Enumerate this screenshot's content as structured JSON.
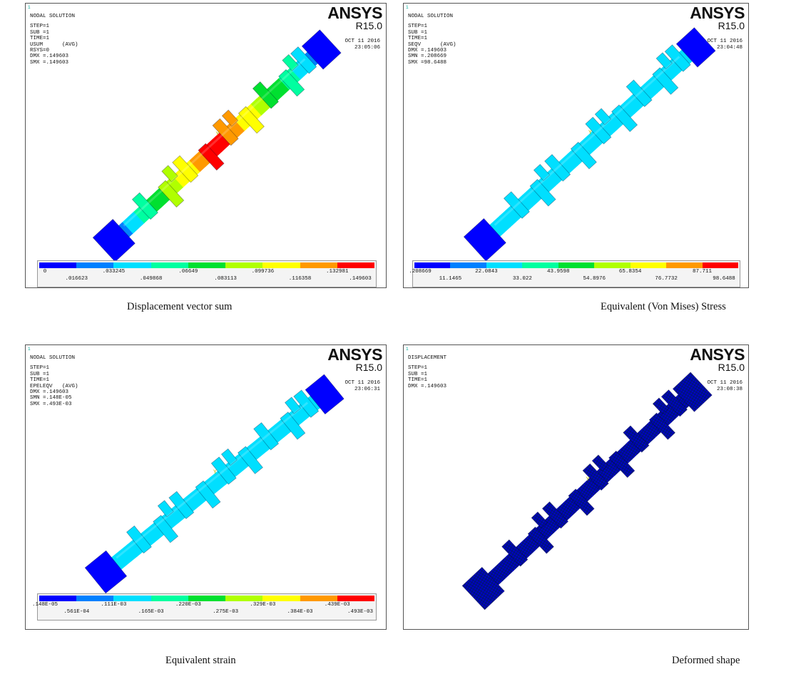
{
  "brand": {
    "logo": "ANSYS",
    "version": "R15.0",
    "window_number": "1"
  },
  "colors": {
    "contour": [
      "#0000ff",
      "#0080ff",
      "#00dfff",
      "#00ffa0",
      "#00e030",
      "#b0ff00",
      "#ffff00",
      "#ff9900",
      "#ff0000"
    ],
    "mesh": "#0000c8",
    "mesh_lines": "#001a66"
  },
  "panels": [
    {
      "caption": "Displacement vector sum",
      "info": [
        "NODAL SOLUTION",
        "STEP=1",
        "SUB =1",
        "TIME=1",
        "USUM      (AVG)",
        "RSYS=0",
        "DMX =.149603",
        "SMX =.149603"
      ],
      "date": "OCT 11 2016",
      "time": "23:05:06",
      "legend": {
        "upper": [
          "0",
          ".033245",
          ".06649",
          ".099736",
          ".132981"
        ],
        "lower": [
          ".016623",
          ".049868",
          ".083113",
          ".116358",
          ".149603"
        ]
      }
    },
    {
      "caption": "Equivalent (Von Mises) Stress",
      "info": [
        "NODAL SOLUTION",
        "STEP=1",
        "SUB =1",
        "TIME=1",
        "SEQV      (AVG)",
        "DMX =.149603",
        "SMN =.208669",
        "SMX =98.6488"
      ],
      "date": "OCT 11 2016",
      "time": "23:04:48",
      "legend": {
        "upper": [
          ".208669",
          "22.0843",
          "43.9598",
          "65.8354",
          "87.711"
        ],
        "lower": [
          "11.1465",
          "33.022",
          "54.8976",
          "76.7732",
          "98.6488"
        ]
      }
    },
    {
      "caption": "Equivalent strain",
      "info": [
        "NODAL SOLUTION",
        "STEP=1",
        "SUB =1",
        "TIME=1",
        "EPELEQV   (AVG)",
        "DMX =.149603",
        "SMN =.148E-05",
        "SMX =.493E-03"
      ],
      "date": "OCT 11 2016",
      "time": "23:06:31",
      "legend": {
        "upper": [
          ".148E-05",
          ".111E-03",
          ".220E-03",
          ".329E-03",
          ".439E-03"
        ],
        "lower": [
          ".561E-04",
          ".165E-03",
          ".275E-03",
          ".384E-03",
          ".493E-03"
        ]
      }
    },
    {
      "caption": "Deformed shape",
      "info": [
        "DISPLACEMENT",
        "STEP=1",
        "SUB =1",
        "TIME=1",
        "DMX =.149603"
      ],
      "date": "OCT 11 2016",
      "time": "23:08:38"
    }
  ]
}
